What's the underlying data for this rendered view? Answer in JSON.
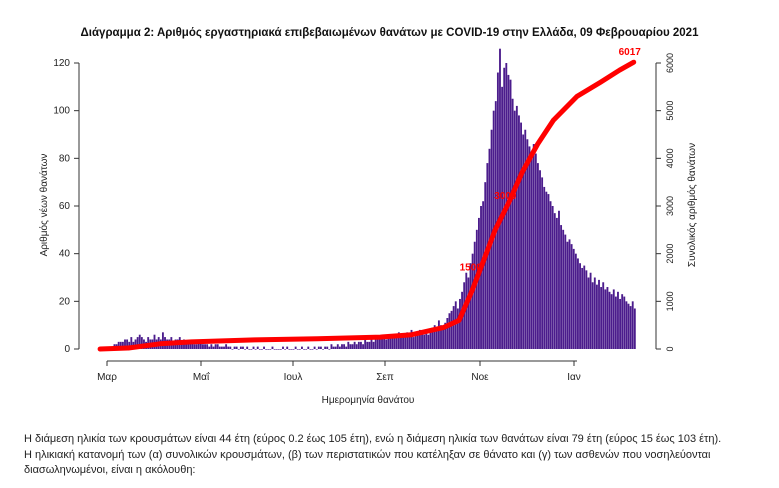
{
  "page": {
    "title": "Διάγραμμα 2: Αριθμός εργαστηριακά επιβεβαιωμένων θανάτων με COVID-19 στην Ελλάδα, 09 Φεβρουαρίου 2021",
    "paragraph1": "Η διάμεση ηλικία των κρουσμάτων είναι 44 έτη (εύρος 0.2 έως 105 έτη), ενώ η διάμεση ηλικία των θανάτων είναι 79 έτη (εύρος 15 έως 103 έτη).",
    "paragraph2": "Η ηλικιακή κατανομή των (α) συνολικών κρουσμάτων, (β) των περιστατικών που κατέληξαν σε θάνατο και (γ) των ασθενών που νοσηλεύονται",
    "paragraph3": "διασωληνωμένοι, είναι η ακόλουθη:"
  },
  "colors": {
    "bars": "#4b1c8c",
    "cumulative": "#ff0000",
    "axis": "#333333"
  },
  "chart_data": {
    "type": "bar",
    "title": "Διάγραμμα 2: Αριθμός εργαστηριακά επιβεβαιωμένων θανάτων με COVID-19 στην Ελλάδα, 09 Φεβρουαρίου 2021",
    "xlabel": "Ημερομηνία θανάτου",
    "ylabel": "Αριθμός νέων θανάτων",
    "y2label": "Συνολικός αριθμός θανάτων",
    "x_ticks": [
      "Μαρ",
      "Μαΐ",
      "Ιουλ",
      "Σεπ",
      "Νοε",
      "Ιαν"
    ],
    "ylim": [
      0,
      120
    ],
    "y_ticks": [
      0,
      20,
      40,
      60,
      80,
      100,
      120
    ],
    "y2lim": [
      0,
      6000
    ],
    "y2_ticks": [
      0,
      1000,
      2000,
      3000,
      4000,
      5000,
      6000
    ],
    "x_start_day_of_year": 60,
    "x_end_day_of_year": 405,
    "series": [
      {
        "values": [
          1,
          1,
          1,
          1,
          1,
          2,
          2,
          3,
          3,
          3,
          4,
          4,
          3,
          5,
          3,
          4,
          5,
          6,
          5,
          4,
          3,
          5,
          4,
          4,
          6,
          4,
          5,
          4,
          7,
          5,
          4,
          4,
          5,
          3,
          4,
          4,
          5,
          3,
          4,
          3,
          3,
          3,
          3,
          2,
          2,
          3,
          3,
          2,
          2,
          2,
          1,
          2,
          1,
          2,
          2,
          1,
          1,
          1,
          2,
          1,
          1,
          0,
          1,
          1,
          0,
          1,
          1,
          0,
          1,
          0,
          0,
          1,
          0,
          1,
          0,
          0,
          1,
          0,
          0,
          0,
          1,
          0,
          0,
          0,
          0,
          1,
          0,
          1,
          0,
          0,
          0,
          1,
          0,
          0,
          1,
          0,
          0,
          1,
          0,
          0,
          1,
          0,
          1,
          1,
          0,
          1,
          1,
          0,
          2,
          1,
          1,
          2,
          1,
          2,
          2,
          1,
          3,
          2,
          2,
          3,
          2,
          3,
          3,
          2,
          4,
          3,
          3,
          4,
          3,
          4,
          5,
          4,
          5,
          5,
          4,
          6,
          5,
          6,
          5,
          6,
          7,
          6,
          5,
          6,
          7,
          6,
          8,
          5,
          7,
          6,
          8,
          7,
          6,
          8,
          6,
          7,
          9,
          10,
          8,
          12,
          10,
          9,
          11,
          13,
          15,
          16,
          18,
          20,
          17,
          21,
          24,
          28,
          32,
          30,
          36,
          40,
          45,
          50,
          55,
          60,
          62,
          70,
          78,
          84,
          92,
          100,
          104,
          116,
          126,
          110,
          118,
          120,
          115,
          113,
          105,
          100,
          102,
          98,
          95,
          90,
          92,
          88,
          85,
          80,
          86,
          82,
          78,
          75,
          72,
          68,
          66,
          65,
          62,
          60,
          57,
          55,
          58,
          52,
          50,
          48,
          45,
          46,
          44,
          42,
          40,
          38,
          36,
          34,
          35,
          33,
          30,
          32,
          28,
          30,
          27,
          29,
          26,
          28,
          25,
          26,
          24,
          23,
          25,
          22,
          24,
          21,
          23,
          22,
          20,
          19,
          18,
          20,
          17
        ]
      }
    ],
    "cumulative_labels": [
      {
        "text": "6017",
        "day_of_year": 401,
        "value": 6017
      },
      {
        "text": "3000",
        "day_of_year": 322,
        "value": 3000
      },
      {
        "text": "1500",
        "day_of_year": 300,
        "value": 1500
      }
    ],
    "cumulative_points": [
      {
        "day": 62,
        "value": 0
      },
      {
        "day": 80,
        "value": 20
      },
      {
        "day": 100,
        "value": 110
      },
      {
        "day": 120,
        "value": 150
      },
      {
        "day": 160,
        "value": 190
      },
      {
        "day": 200,
        "value": 215
      },
      {
        "day": 240,
        "value": 250
      },
      {
        "day": 260,
        "value": 300
      },
      {
        "day": 280,
        "value": 450
      },
      {
        "day": 290,
        "value": 600
      },
      {
        "day": 298,
        "value": 1200
      },
      {
        "day": 305,
        "value": 1800
      },
      {
        "day": 313,
        "value": 2500
      },
      {
        "day": 322,
        "value": 3100
      },
      {
        "day": 330,
        "value": 3700
      },
      {
        "day": 340,
        "value": 4300
      },
      {
        "day": 350,
        "value": 4800
      },
      {
        "day": 365,
        "value": 5300
      },
      {
        "day": 380,
        "value": 5600
      },
      {
        "day": 392,
        "value": 5850
      },
      {
        "day": 401,
        "value": 6017
      }
    ]
  }
}
